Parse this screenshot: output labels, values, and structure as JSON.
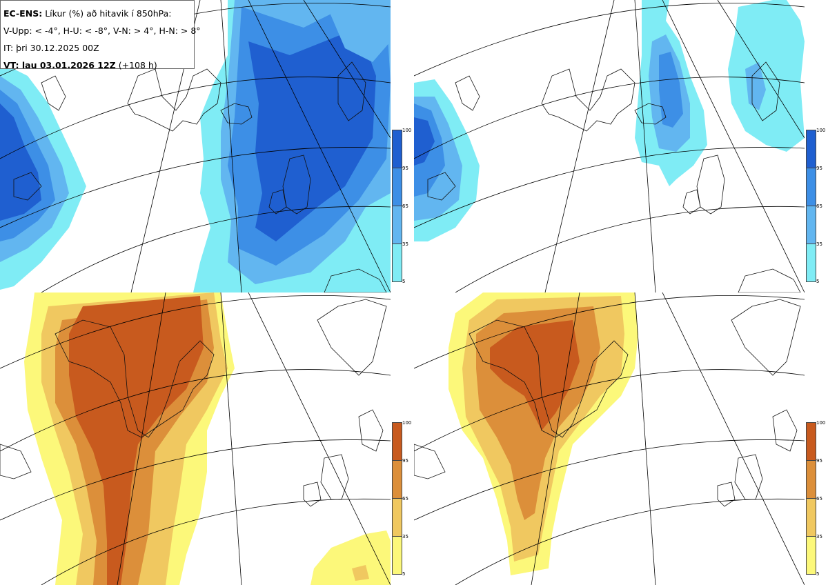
{
  "header": {
    "model": "EC-ENS:",
    "title": "Líkur (%) að hitavik í 850hPa:",
    "thresholds": "V-Upp: < -4°, H-U: < -8°, V-N: > 4°, H-N: > 8°",
    "init_time": "IT: þri 30.12.2025 00Z",
    "valid_label": "VT: lau 03.01.2026 12Z",
    "lead_time": "(+108 h)"
  },
  "colorbars": {
    "cold": {
      "ticks": [
        "100",
        "95",
        "65",
        "35",
        "5"
      ],
      "colors": [
        "#1f5fd0",
        "#3d8fe6",
        "#62b6f0",
        "#7fecf5"
      ]
    },
    "warm": {
      "ticks": [
        "100",
        "95",
        "65",
        "35",
        "5"
      ],
      "colors": [
        "#c85a1e",
        "#dc8f3a",
        "#f0c860",
        "#fcf87a"
      ]
    }
  },
  "panels": [
    {
      "id": "V-Upp",
      "scheme": "cold"
    },
    {
      "id": "H-U",
      "scheme": "cold"
    },
    {
      "id": "V-N",
      "scheme": "warm"
    },
    {
      "id": "H-N",
      "scheme": "warm"
    }
  ]
}
